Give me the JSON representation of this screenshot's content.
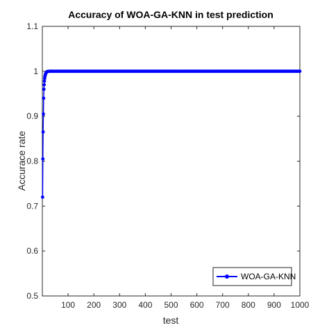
{
  "chart_data": {
    "type": "line",
    "title": "Accuracy of WOA-GA-KNN in test prediction",
    "xlabel": "test",
    "ylabel": "Accurace rate",
    "xlim": [
      0,
      1000
    ],
    "ylim": [
      0.5,
      1.1
    ],
    "xticks": [
      100,
      200,
      300,
      400,
      500,
      600,
      700,
      800,
      900,
      1000
    ],
    "yticks": [
      0.5,
      0.6,
      0.7,
      0.8,
      0.9,
      1,
      1.1
    ],
    "ytick_labels": [
      "0.5",
      "0.6",
      "0.7",
      "0.8",
      "0.9",
      "1",
      "1.1"
    ],
    "grid": false,
    "legend_position": "bottom-right",
    "series": [
      {
        "name": "WOA-GA-KNN",
        "color": "#0000ff",
        "marker": "circle",
        "x": [
          1,
          2,
          3,
          4,
          5,
          6,
          7,
          8,
          9,
          10,
          11,
          12,
          13,
          14,
          15,
          16,
          17,
          18,
          19,
          20,
          25,
          30,
          40,
          50,
          1000
        ],
        "y": [
          0.72,
          0.805,
          0.865,
          0.905,
          0.94,
          0.96,
          0.97,
          0.978,
          0.984,
          0.988,
          0.991,
          0.993,
          0.995,
          0.996,
          0.997,
          0.998,
          0.9985,
          0.999,
          0.9993,
          0.9995,
          0.9998,
          1.0,
          1.0,
          1.0,
          1.0
        ]
      }
    ]
  }
}
